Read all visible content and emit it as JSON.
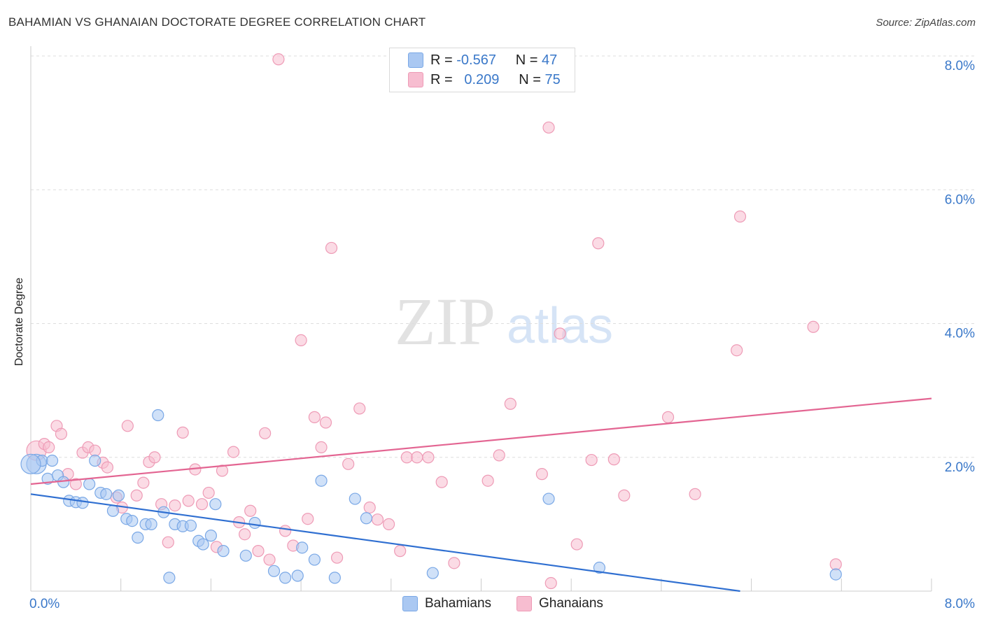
{
  "header": {
    "title": "BAHAMIAN VS GHANAIAN DOCTORATE DEGREE CORRELATION CHART",
    "source": "Source: ZipAtlas.com"
  },
  "watermark": {
    "zip": "ZIP",
    "atlas": "atlas"
  },
  "legend_top": {
    "rows": [
      {
        "r_label": "R =",
        "r_value": "-0.567",
        "n_label": "N =",
        "n_value": "47",
        "color": "#aac8f2"
      },
      {
        "r_label": "R =",
        "r_value": "0.209",
        "n_label": "N =",
        "n_value": "75",
        "color": "#f7bdd0"
      }
    ]
  },
  "legend_bottom": {
    "items": [
      {
        "label": "Bahamians",
        "color": "#aac8f2"
      },
      {
        "label": "Ghanaians",
        "color": "#f7bdd0"
      }
    ]
  },
  "chart_data": {
    "type": "scatter",
    "title": "BAHAMIAN VS GHANAIAN DOCTORATE DEGREE CORRELATION CHART",
    "xlabel": "",
    "ylabel": "Doctorate Degree",
    "xlim": [
      0,
      8
    ],
    "ylim": [
      0,
      8
    ],
    "x_tick_labels": [
      "0.0%",
      "8.0%"
    ],
    "y_tick_labels": [
      "2.0%",
      "4.0%",
      "6.0%",
      "8.0%"
    ],
    "y_ticks": [
      2,
      4,
      6,
      8
    ],
    "grid": true,
    "legend_position": "top-center",
    "series": [
      {
        "name": "Bahamians",
        "color": "#7aa8e6",
        "fill": "#aac8f2",
        "trend_color": "#2f6fd1",
        "trend": {
          "x": [
            0,
            6.3
          ],
          "y": [
            1.45,
            0.0
          ]
        },
        "points": [
          [
            0.05,
            1.9
          ],
          [
            0.1,
            1.95
          ],
          [
            0.15,
            1.68
          ],
          [
            0.19,
            1.95
          ],
          [
            0.24,
            1.73
          ],
          [
            0.29,
            1.63
          ],
          [
            0.34,
            1.35
          ],
          [
            0.4,
            1.33
          ],
          [
            0.46,
            1.32
          ],
          [
            0.52,
            1.6
          ],
          [
            0.57,
            1.95
          ],
          [
            0.62,
            1.47
          ],
          [
            0.67,
            1.45
          ],
          [
            0.73,
            1.2
          ],
          [
            0.78,
            1.43
          ],
          [
            0.85,
            1.08
          ],
          [
            0.9,
            1.05
          ],
          [
            0.95,
            0.8
          ],
          [
            1.02,
            1.0
          ],
          [
            1.07,
            1.0
          ],
          [
            1.13,
            2.63
          ],
          [
            1.18,
            1.18
          ],
          [
            1.23,
            0.2
          ],
          [
            1.28,
            1.0
          ],
          [
            1.35,
            0.97
          ],
          [
            1.42,
            0.98
          ],
          [
            1.49,
            0.75
          ],
          [
            1.53,
            0.7
          ],
          [
            1.6,
            0.83
          ],
          [
            1.64,
            1.3
          ],
          [
            1.71,
            0.6
          ],
          [
            1.91,
            0.53
          ],
          [
            1.99,
            1.02
          ],
          [
            2.16,
            0.3
          ],
          [
            2.26,
            0.2
          ],
          [
            2.37,
            0.23
          ],
          [
            2.41,
            0.65
          ],
          [
            2.52,
            0.47
          ],
          [
            2.58,
            1.65
          ],
          [
            2.7,
            0.2
          ],
          [
            2.88,
            1.38
          ],
          [
            2.98,
            1.09
          ],
          [
            3.57,
            0.27
          ],
          [
            4.6,
            1.38
          ],
          [
            5.05,
            0.35
          ],
          [
            7.15,
            0.25
          ],
          [
            0.0,
            1.9
          ]
        ]
      },
      {
        "name": "Ghanaians",
        "color": "#ee9bb6",
        "fill": "#f7bdd0",
        "trend_color": "#e36592",
        "trend": {
          "x": [
            0,
            8.0
          ],
          "y": [
            1.6,
            2.88
          ]
        },
        "points": [
          [
            0.05,
            2.1
          ],
          [
            0.12,
            2.2
          ],
          [
            0.16,
            2.15
          ],
          [
            0.23,
            2.47
          ],
          [
            0.27,
            2.35
          ],
          [
            0.33,
            1.75
          ],
          [
            0.4,
            1.6
          ],
          [
            0.46,
            2.07
          ],
          [
            0.51,
            2.15
          ],
          [
            0.57,
            2.1
          ],
          [
            0.64,
            1.92
          ],
          [
            0.68,
            1.85
          ],
          [
            0.76,
            1.4
          ],
          [
            0.81,
            1.25
          ],
          [
            0.86,
            2.47
          ],
          [
            0.94,
            1.43
          ],
          [
            1.0,
            1.62
          ],
          [
            1.05,
            1.93
          ],
          [
            1.1,
            2.0
          ],
          [
            1.16,
            1.3
          ],
          [
            1.22,
            0.73
          ],
          [
            1.28,
            1.28
          ],
          [
            1.35,
            2.37
          ],
          [
            1.4,
            1.35
          ],
          [
            1.46,
            1.82
          ],
          [
            1.52,
            1.3
          ],
          [
            1.58,
            1.47
          ],
          [
            1.65,
            0.66
          ],
          [
            1.7,
            1.8
          ],
          [
            1.8,
            2.08
          ],
          [
            1.85,
            1.03
          ],
          [
            1.9,
            0.85
          ],
          [
            1.95,
            1.2
          ],
          [
            2.02,
            0.6
          ],
          [
            2.08,
            2.36
          ],
          [
            2.12,
            0.47
          ],
          [
            2.2,
            7.95
          ],
          [
            2.26,
            0.9
          ],
          [
            2.33,
            0.68
          ],
          [
            2.4,
            3.75
          ],
          [
            2.46,
            1.08
          ],
          [
            2.52,
            2.6
          ],
          [
            2.58,
            2.15
          ],
          [
            2.62,
            2.52
          ],
          [
            2.67,
            5.13
          ],
          [
            2.72,
            0.5
          ],
          [
            2.82,
            1.9
          ],
          [
            2.92,
            2.73
          ],
          [
            3.01,
            1.25
          ],
          [
            3.08,
            1.07
          ],
          [
            3.18,
            1.0
          ],
          [
            3.28,
            0.6
          ],
          [
            3.34,
            2.0
          ],
          [
            3.43,
            2.0
          ],
          [
            3.53,
            2.0
          ],
          [
            3.65,
            1.63
          ],
          [
            3.76,
            0.42
          ],
          [
            4.06,
            1.65
          ],
          [
            4.16,
            2.03
          ],
          [
            4.26,
            2.8
          ],
          [
            4.54,
            1.75
          ],
          [
            4.6,
            6.93
          ],
          [
            4.62,
            0.12
          ],
          [
            4.7,
            3.85
          ],
          [
            4.85,
            0.7
          ],
          [
            4.98,
            1.96
          ],
          [
            5.04,
            5.2
          ],
          [
            5.18,
            1.97
          ],
          [
            5.27,
            1.43
          ],
          [
            5.66,
            2.6
          ],
          [
            5.9,
            1.45
          ],
          [
            6.27,
            3.6
          ],
          [
            6.3,
            5.6
          ],
          [
            6.95,
            3.95
          ],
          [
            7.15,
            0.4
          ]
        ]
      }
    ]
  }
}
